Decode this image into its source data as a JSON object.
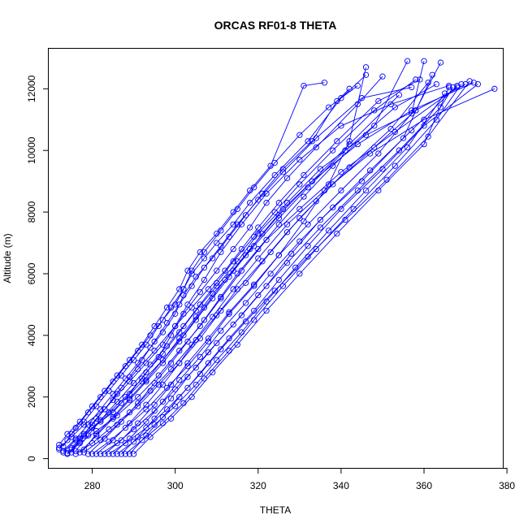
{
  "chart_data": {
    "type": "line",
    "title": "ORCAS RF01-8 THETA",
    "xlabel": "THETA",
    "ylabel": "Altitude (m)",
    "xlim": [
      269.5,
      379
    ],
    "ylim": [
      -300,
      13300
    ],
    "x_ticks": [
      280,
      300,
      320,
      340,
      360,
      380
    ],
    "y_ticks": [
      0,
      2000,
      4000,
      6000,
      8000,
      10000,
      12000
    ],
    "series_color": "#0000ff",
    "marker": "open-circle",
    "series": [
      {
        "x": [
          272,
          275,
          278,
          283,
          287,
          291,
          295,
          300,
          303,
          307,
          311,
          316,
          322,
          330,
          340,
          352,
          366
        ],
        "y": [
          350,
          700,
          1100,
          1600,
          2300,
          2900,
          3500,
          4300,
          5000,
          5800,
          6700,
          7600,
          8600,
          9700,
          10800,
          11500,
          12100
        ]
      },
      {
        "x": [
          273,
          276,
          280,
          285,
          289,
          293,
          297,
          301,
          305,
          310,
          315,
          320,
          327,
          335,
          346,
          358,
          370
        ],
        "y": [
          200,
          600,
          1000,
          1500,
          2100,
          2800,
          3400,
          4100,
          4800,
          5600,
          6400,
          7300,
          8300,
          9400,
          10500,
          11300,
          12150
        ]
      },
      {
        "x": [
          274,
          277,
          281,
          286,
          291,
          296,
          301,
          306,
          311,
          316,
          322,
          330,
          340,
          353,
          368
        ],
        "y": [
          150,
          500,
          900,
          1400,
          2000,
          2700,
          3500,
          4300,
          5200,
          6100,
          7100,
          8100,
          9300,
          10600,
          12050
        ]
      },
      {
        "x": [
          275,
          278,
          282,
          287,
          292,
          297,
          302,
          307,
          312,
          318,
          325,
          333,
          344,
          357,
          372
        ],
        "y": [
          300,
          750,
          1200,
          1800,
          2500,
          3200,
          4000,
          4900,
          5800,
          6800,
          7900,
          9000,
          10200,
          11300,
          12200
        ]
      },
      {
        "x": [
          276,
          280,
          284,
          289,
          294,
          299,
          304,
          309,
          314,
          320,
          327,
          336,
          347,
          360,
          377
        ],
        "y": [
          150,
          500,
          950,
          1500,
          2200,
          2900,
          3700,
          4600,
          5500,
          6500,
          7600,
          8700,
          9900,
          11000,
          12000
        ]
      },
      {
        "x": [
          278,
          282,
          286,
          291,
          296,
          301,
          306,
          311,
          317,
          323,
          330,
          338,
          348,
          358,
          364
        ],
        "y": [
          200,
          600,
          1100,
          1700,
          2400,
          3100,
          3900,
          4800,
          5700,
          6700,
          7800,
          8900,
          10100,
          11300,
          12850
        ]
      },
      {
        "x": [
          280,
          284,
          288,
          293,
          298,
          303,
          308,
          313,
          319,
          325,
          331,
          337,
          342,
          346
        ],
        "y": [
          150,
          550,
          1000,
          1600,
          2300,
          3000,
          3800,
          4700,
          5600,
          6600,
          7700,
          8900,
          10300,
          12700
        ]
      },
      {
        "x": [
          282,
          286,
          290,
          295,
          300,
          305,
          310,
          316,
          322,
          328,
          335,
          345,
          355,
          362
        ],
        "y": [
          150,
          500,
          950,
          1550,
          2250,
          2950,
          3750,
          4650,
          5600,
          6650,
          7750,
          9000,
          10400,
          12450
        ]
      },
      {
        "x": [
          284,
          288,
          293,
          298,
          303,
          308,
          313,
          319,
          325,
          332,
          340,
          350,
          360,
          373
        ],
        "y": [
          150,
          500,
          1000,
          1600,
          2300,
          3100,
          3900,
          4800,
          5800,
          6900,
          8100,
          9400,
          10800,
          12150
        ]
      },
      {
        "x": [
          286,
          290,
          295,
          300,
          305,
          310,
          316,
          322,
          329,
          337,
          346,
          356,
          365
        ],
        "y": [
          150,
          550,
          1100,
          1700,
          2400,
          3200,
          4100,
          5100,
          6200,
          7400,
          8700,
          10100,
          11850
        ]
      },
      {
        "x": [
          288,
          292,
          297,
          302,
          307,
          313,
          319,
          326,
          334,
          343,
          353,
          363,
          369
        ],
        "y": [
          150,
          600,
          1150,
          1800,
          2600,
          3500,
          4500,
          5600,
          6800,
          8100,
          9500,
          11000,
          12150
        ]
      },
      {
        "x": [
          290,
          294,
          299,
          304,
          309,
          315,
          322,
          330,
          339,
          349,
          360,
          366
        ],
        "y": [
          150,
          700,
          1300,
          2000,
          2800,
          3700,
          4800,
          6000,
          7300,
          8700,
          10200,
          12050
        ]
      },
      {
        "x": [
          272,
          274,
          277,
          280,
          283,
          286,
          289,
          292,
          295,
          298,
          301,
          303,
          306,
          310,
          314,
          318,
          323,
          331,
          336
        ],
        "y": [
          450,
          800,
          1200,
          1700,
          2200,
          2700,
          3200,
          3700,
          4300,
          4900,
          5500,
          6100,
          6700,
          7300,
          8000,
          8700,
          9500,
          12100,
          12200
        ]
      },
      {
        "x": [
          273,
          276,
          279,
          282,
          285,
          288,
          291,
          294,
          297,
          300,
          302,
          305,
          309,
          313,
          317,
          321,
          326,
          333,
          339,
          342
        ],
        "y": [
          250,
          650,
          1100,
          1600,
          2100,
          2600,
          3100,
          3600,
          4100,
          4700,
          5300,
          5900,
          6500,
          7200,
          7900,
          8600,
          9400,
          10300,
          11600,
          12000
        ]
      },
      {
        "x": [
          274,
          277,
          280,
          284,
          288,
          292,
          296,
          299,
          302,
          306,
          310,
          314,
          318,
          322,
          327,
          334,
          344,
          350
        ],
        "y": [
          180,
          550,
          1000,
          1500,
          2000,
          2600,
          3300,
          4000,
          4700,
          5400,
          6100,
          6800,
          7500,
          8300,
          9100,
          10100,
          11500,
          12400
        ]
      },
      {
        "x": [
          275,
          278,
          281,
          285,
          289,
          293,
          297,
          300,
          304,
          308,
          312,
          316,
          320,
          325,
          331,
          339,
          349,
          359
        ],
        "y": [
          350,
          800,
          1300,
          1900,
          2500,
          3100,
          3700,
          4300,
          4900,
          5500,
          6100,
          6800,
          7500,
          8300,
          9200,
          10300,
          11600,
          12300
        ]
      },
      {
        "x": [
          277,
          281,
          285,
          289,
          293,
          297,
          301,
          305,
          309,
          313,
          317,
          321,
          326,
          333,
          342,
          354
        ],
        "y": [
          200,
          750,
          1300,
          1900,
          2500,
          3100,
          3800,
          4500,
          5200,
          5900,
          6600,
          7300,
          8100,
          9000,
          10200,
          11800
        ]
      },
      {
        "x": [
          279,
          283,
          287,
          291,
          295,
          299,
          303,
          307,
          311,
          315,
          320,
          325,
          331,
          338,
          348,
          356
        ],
        "y": [
          150,
          650,
          1200,
          1800,
          2450,
          3100,
          3800,
          4500,
          5250,
          6000,
          6800,
          7600,
          8500,
          9500,
          10800,
          12900
        ]
      },
      {
        "x": [
          281,
          285,
          289,
          293,
          297,
          301,
          305,
          310,
          315,
          321,
          327,
          334,
          342,
          352,
          361
        ],
        "y": [
          150,
          600,
          1150,
          1750,
          2400,
          3100,
          3850,
          4650,
          5500,
          6400,
          7350,
          8350,
          9450,
          10700,
          12200
        ]
      },
      {
        "x": [
          283,
          287,
          291,
          295,
          299,
          303,
          308,
          313,
          319,
          325,
          332,
          340,
          349,
          357,
          360
        ],
        "y": [
          150,
          600,
          1150,
          1750,
          2400,
          3100,
          3900,
          4750,
          5650,
          6600,
          7600,
          8700,
          9900,
          11200,
          12900
        ]
      },
      {
        "x": [
          285,
          289,
          293,
          297,
          301,
          306,
          311,
          317,
          323,
          330,
          338,
          347,
          357,
          368
        ],
        "y": [
          150,
          650,
          1200,
          1850,
          2550,
          3300,
          4150,
          5050,
          6000,
          7050,
          8150,
          9350,
          10650,
          12100
        ]
      },
      {
        "x": [
          287,
          291,
          295,
          299,
          303,
          308,
          314,
          320,
          327,
          335,
          344,
          354,
          364,
          367
        ],
        "y": [
          150,
          700,
          1300,
          1950,
          2650,
          3450,
          4350,
          5300,
          6350,
          7500,
          8700,
          10000,
          11400,
          12050
        ]
      },
      {
        "x": [
          289,
          293,
          297,
          301,
          306,
          311,
          317,
          324,
          332,
          341,
          351,
          361,
          371
        ],
        "y": [
          150,
          750,
          1350,
          2000,
          2750,
          3550,
          4450,
          5450,
          6550,
          7750,
          9050,
          10450,
          12250
        ]
      },
      {
        "x": [
          272,
          274,
          276,
          279,
          282,
          285,
          288,
          291,
          294,
          297,
          300,
          302,
          304,
          307,
          310,
          314,
          318,
          324,
          332,
          340,
          346
        ],
        "y": [
          300,
          600,
          1000,
          1500,
          2000,
          2500,
          3000,
          3500,
          4000,
          4500,
          5000,
          5500,
          6000,
          6500,
          7000,
          7600,
          8300,
          9200,
          10300,
          11700,
          12450
        ]
      },
      {
        "x": [
          273,
          275,
          278,
          281,
          284,
          287,
          290,
          293,
          296,
          299,
          302,
          304,
          307,
          311,
          315,
          319,
          324,
          330,
          337,
          344
        ],
        "y": [
          400,
          800,
          1200,
          1700,
          2200,
          2700,
          3200,
          3700,
          4300,
          4900,
          5500,
          6100,
          6700,
          7400,
          8100,
          8800,
          9600,
          10500,
          11400,
          12100
        ]
      },
      {
        "x": [
          275,
          277,
          280,
          283,
          286,
          289,
          292,
          295,
          298,
          301,
          304,
          307,
          311,
          315,
          320,
          326,
          334,
          345,
          357
        ],
        "y": [
          200,
          650,
          1100,
          1600,
          2100,
          2650,
          3200,
          3800,
          4400,
          5000,
          5600,
          6200,
          6900,
          7600,
          8400,
          9300,
          10400,
          11700,
          12050
        ]
      },
      {
        "x": [
          276,
          279,
          282,
          286,
          290,
          294,
          298,
          302,
          306,
          310,
          314,
          319,
          324,
          330,
          338,
          348,
          358
        ],
        "y": [
          250,
          750,
          1250,
          1850,
          2450,
          3050,
          3650,
          4300,
          5000,
          5700,
          6400,
          7200,
          8000,
          8900,
          10000,
          11300,
          12300
        ]
      },
      {
        "x": [
          278,
          281,
          285,
          289,
          293,
          297,
          301,
          305,
          309,
          314,
          319,
          325,
          332,
          341,
          353,
          363
        ],
        "y": [
          300,
          800,
          1350,
          1950,
          2550,
          3200,
          3900,
          4600,
          5350,
          6100,
          6900,
          7800,
          8800,
          10000,
          11400,
          12150
        ]
      }
    ]
  }
}
